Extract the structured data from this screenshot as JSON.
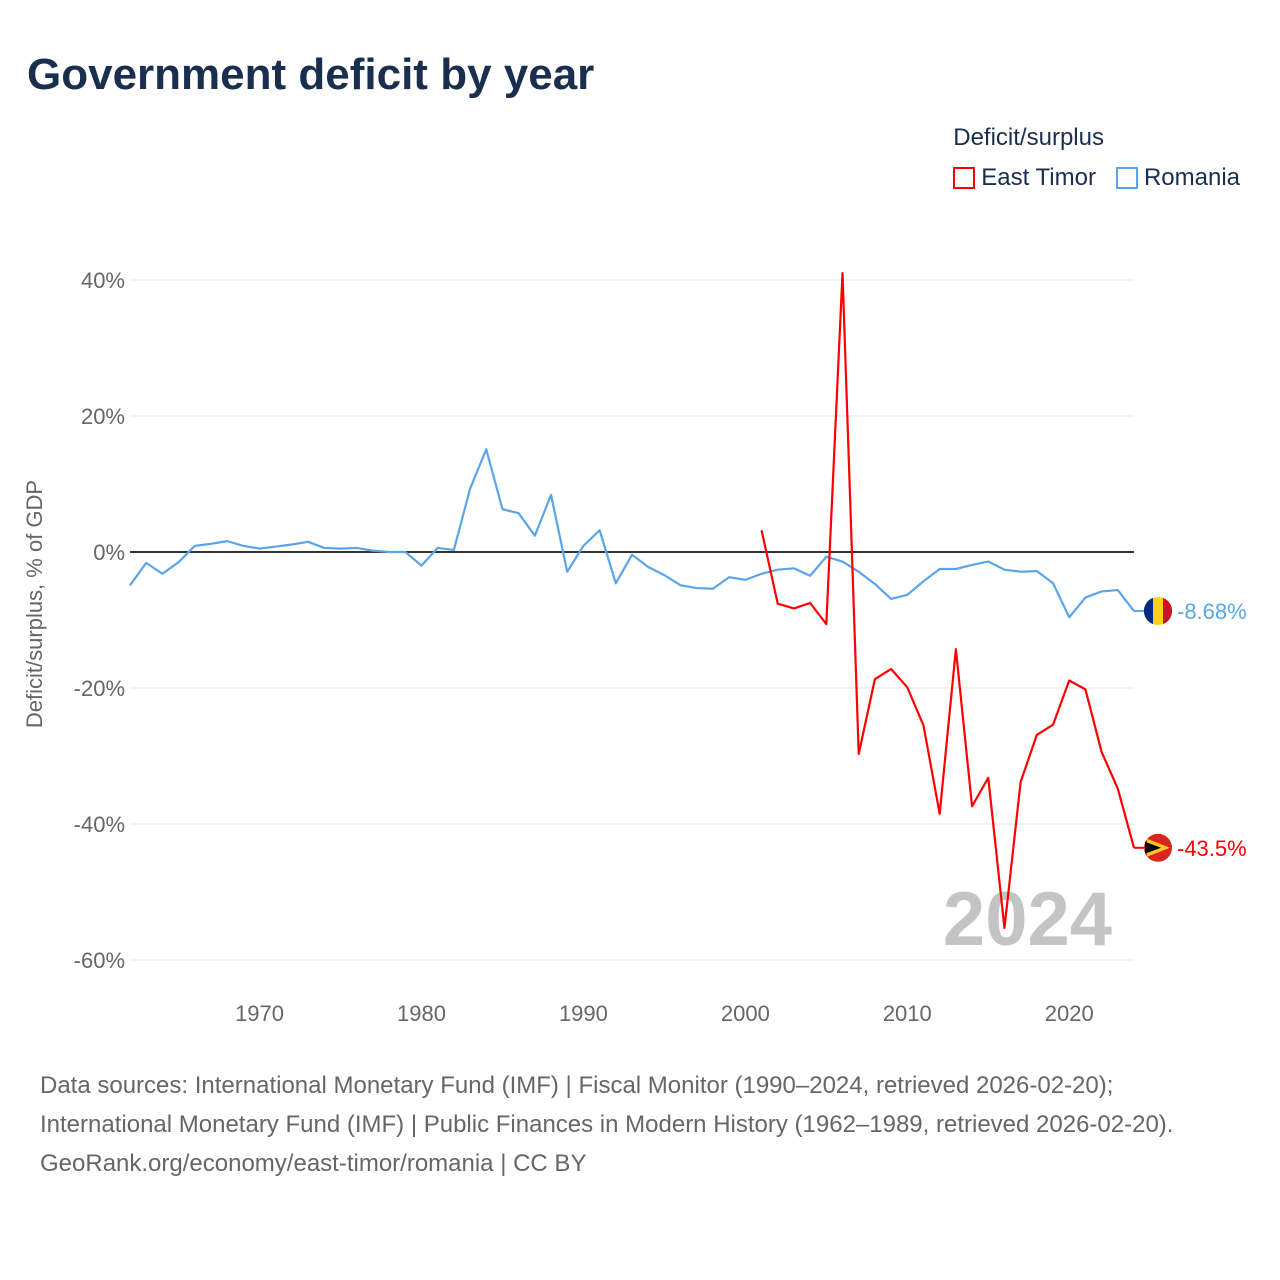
{
  "title": "Government deficit by year",
  "legend": {
    "title": "Deficit/surplus"
  },
  "chart_data": {
    "type": "line",
    "title": "Government deficit by year",
    "ylabel": "Deficit/surplus, % of GDP",
    "xlabel": "",
    "ylim": [
      -60,
      40
    ],
    "xlim": [
      1962,
      2024
    ],
    "yticks": [
      {
        "v": 40,
        "label": "40%"
      },
      {
        "v": 20,
        "label": "20%"
      },
      {
        "v": 0,
        "label": "0%"
      },
      {
        "v": -20,
        "label": "-20%"
      },
      {
        "v": -40,
        "label": "-40%"
      },
      {
        "v": -60,
        "label": "-60%"
      }
    ],
    "xticks": [
      1970,
      1980,
      1990,
      2000,
      2010,
      2020
    ],
    "year_watermark": "2024",
    "grid": true,
    "legend_position": "top-right",
    "series": [
      {
        "name": "East Timor",
        "color": "#ff0000",
        "end_label": "-43.5%",
        "start": 2001,
        "values": [
          3.2,
          -7.6,
          -8.3,
          -7.5,
          -10.6,
          41,
          -29.7,
          -18.7,
          -17.2,
          -19.9,
          -25.5,
          -38.5,
          -14.3,
          -37.4,
          -33.2,
          -55.3,
          -33.8,
          -26.9,
          -25.4,
          -18.9,
          -20.2,
          -29.4,
          -34.8,
          -43.5
        ]
      },
      {
        "name": "Romania",
        "color": "#5aa5e8",
        "end_label": "-8.68%",
        "start": 1962,
        "values": [
          -4.9,
          -1.6,
          -3.2,
          -1.5,
          0.9,
          1.2,
          1.6,
          0.9,
          0.5,
          0.8,
          1.1,
          1.5,
          0.6,
          0.5,
          0.6,
          0.2,
          0,
          0,
          -2.0,
          0.6,
          0.3,
          9.3,
          15.1,
          6.3,
          5.7,
          2.4,
          8.4,
          -2.9,
          0.9,
          3.2,
          -4.6,
          -0.4,
          -2.2,
          -3.4,
          -4.9,
          -5.3,
          -5.4,
          -3.7,
          -4.1,
          -3.2,
          -2.6,
          -2.4,
          -3.5,
          -0.7,
          -1.4,
          -2.9,
          -4.7,
          -6.9,
          -6.3,
          -4.3,
          -2.5,
          -2.5,
          -1.9,
          -1.4,
          -2.6,
          -2.9,
          -2.8,
          -4.6,
          -9.6,
          -6.7,
          -5.8,
          -5.6,
          -8.68
        ]
      }
    ]
  },
  "footer": {
    "sources": "Data sources: International Monetary Fund (IMF) | Fiscal Monitor (1990–2024, retrieved 2026-02-20); International Monetary Fund (IMF) | Public Finances in Modern History (1962–1989, retrieved 2026-02-20).",
    "credit": "GeoRank.org/economy/east-timor/romania | CC BY"
  }
}
